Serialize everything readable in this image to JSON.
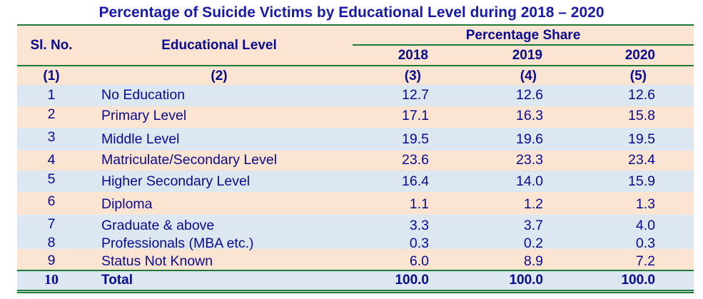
{
  "title": "Percentage of Suicide Victims by Educational Level during 2018 – 2020",
  "header": {
    "sl_no": "Sl. No.",
    "level": "Educational Level",
    "group": "Percentage Share",
    "years": [
      "2018",
      "2019",
      "2020"
    ],
    "col_numbers": [
      "(1)",
      "(2)",
      "(3)",
      "(4)",
      "(5)"
    ]
  },
  "rows": [
    {
      "sl": "1",
      "level": "No Education",
      "v2018": "12.7",
      "v2019": "12.6",
      "v2020": "12.6"
    },
    {
      "sl": "2",
      "level": "Primary Level",
      "v2018": "17.1",
      "v2019": "16.3",
      "v2020": "15.8"
    },
    {
      "sl": "3",
      "level": "Middle Level",
      "v2018": "19.5",
      "v2019": "19.6",
      "v2020": "19.5"
    },
    {
      "sl": "4",
      "level": "Matriculate/Secondary Level",
      "v2018": "23.6",
      "v2019": "23.3",
      "v2020": "23.4"
    },
    {
      "sl": "5",
      "level": "Higher Secondary Level",
      "v2018": "16.4",
      "v2019": "14.0",
      "v2020": "15.9"
    },
    {
      "sl": "6",
      "level": "Diploma",
      "v2018": "1.1",
      "v2019": "1.2",
      "v2020": "1.3"
    },
    {
      "sl": "7",
      "level": "Graduate & above",
      "v2018": "3.3",
      "v2019": "3.7",
      "v2020": "4.0"
    },
    {
      "sl": "8",
      "level": "Professionals (MBA etc.)",
      "v2018": "0.3",
      "v2019": "0.2",
      "v2020": "0.3"
    },
    {
      "sl": "9",
      "level": "Status Not Known",
      "v2018": "6.0",
      "v2019": "8.9",
      "v2020": "7.2"
    }
  ],
  "total": {
    "sl": "10",
    "level": "Total",
    "v2018": "100.0",
    "v2019": "100.0",
    "v2020": "100.0"
  },
  "colors": {
    "text": "#0a0a8c",
    "title": "#1a1aa8",
    "rule": "#1f7a3a",
    "band_peach": "#fce4d2",
    "band_blue": "#dce7f2"
  }
}
